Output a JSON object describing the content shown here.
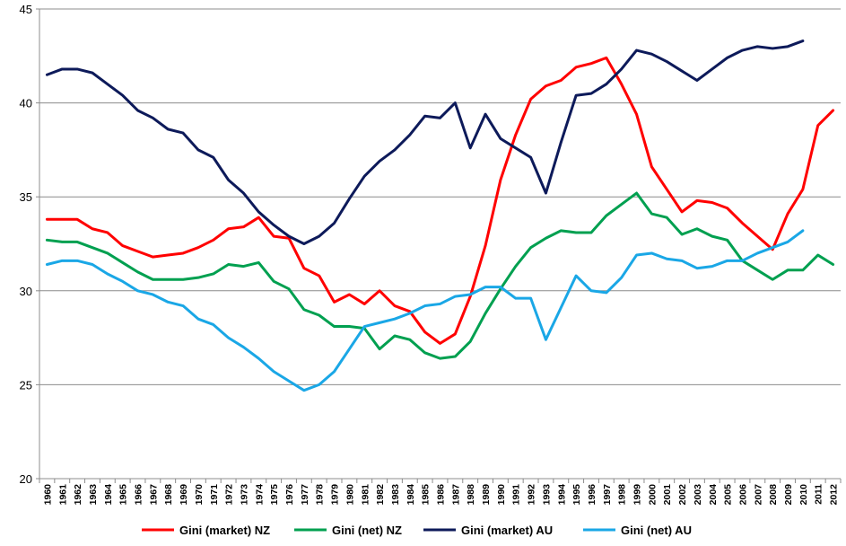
{
  "chart_data": {
    "type": "line",
    "title": "",
    "xlabel": "",
    "ylabel": "",
    "ylim": [
      20,
      45
    ],
    "yticks": [
      20,
      25,
      30,
      35,
      40,
      45
    ],
    "grid": "horizontal",
    "legend_position": "bottom",
    "x": [
      "1960",
      "1961",
      "1962",
      "1963",
      "1964",
      "1965",
      "1966",
      "1967",
      "1968",
      "1969",
      "1970",
      "1971",
      "1972",
      "1973",
      "1974",
      "1975",
      "1976",
      "1977",
      "1978",
      "1979",
      "1980",
      "1981",
      "1982",
      "1983",
      "1984",
      "1985",
      "1986",
      "1987",
      "1988",
      "1989",
      "1990",
      "1991",
      "1992",
      "1993",
      "1994",
      "1995",
      "1996",
      "1997",
      "1998",
      "1999",
      "2000",
      "2001",
      "2002",
      "2003",
      "2004",
      "2005",
      "2006",
      "2007",
      "2008",
      "2009",
      "2010",
      "2011",
      "2012"
    ],
    "series": [
      {
        "name": "Gini (market) NZ",
        "color": "#ff0000",
        "values": [
          33.8,
          33.8,
          33.8,
          33.3,
          33.1,
          32.4,
          32.1,
          31.8,
          31.9,
          32.0,
          32.3,
          32.7,
          33.3,
          33.4,
          33.9,
          32.9,
          32.8,
          31.2,
          30.8,
          29.4,
          29.8,
          29.3,
          30.0,
          29.2,
          28.9,
          27.8,
          27.2,
          27.7,
          29.7,
          32.4,
          35.9,
          38.3,
          40.2,
          40.9,
          41.2,
          41.9,
          42.1,
          42.4,
          41.0,
          39.4,
          36.6,
          35.4,
          34.2,
          34.8,
          34.7,
          34.4,
          33.6,
          32.9,
          32.2,
          34.1,
          35.4,
          38.8,
          39.6
        ]
      },
      {
        "name": "Gini (net) NZ",
        "color": "#00a050",
        "values": [
          32.7,
          32.6,
          32.6,
          32.3,
          32.0,
          31.5,
          31.0,
          30.6,
          30.6,
          30.6,
          30.7,
          30.9,
          31.4,
          31.3,
          31.5,
          30.5,
          30.1,
          29.0,
          28.7,
          28.1,
          28.1,
          28.0,
          26.9,
          27.6,
          27.4,
          26.7,
          26.4,
          26.5,
          27.3,
          28.8,
          30.1,
          31.3,
          32.3,
          32.8,
          33.2,
          33.1,
          33.1,
          34.0,
          34.6,
          35.2,
          34.1,
          33.9,
          33.0,
          33.3,
          32.9,
          32.7,
          31.6,
          31.1,
          30.6,
          31.1,
          31.1,
          31.9,
          31.4
        ]
      },
      {
        "name": "Gini (market) AU",
        "color": "#0d1a5a",
        "values": [
          41.5,
          41.8,
          41.8,
          41.6,
          41.0,
          40.4,
          39.6,
          39.2,
          38.6,
          38.4,
          37.5,
          37.1,
          35.9,
          35.2,
          34.2,
          33.5,
          32.9,
          32.5,
          32.9,
          33.6,
          34.9,
          36.1,
          36.9,
          37.5,
          38.3,
          39.3,
          39.2,
          40.0,
          37.6,
          39.4,
          38.1,
          37.6,
          37.1,
          35.2,
          37.9,
          40.4,
          40.5,
          41.0,
          41.8,
          42.8,
          42.6,
          42.2,
          41.7,
          41.2,
          41.8,
          42.4,
          42.8,
          43.0,
          42.9,
          43.0,
          43.3,
          null,
          null
        ]
      },
      {
        "name": "Gini (net) AU",
        "color": "#1aa7e6",
        "values": [
          31.4,
          31.6,
          31.6,
          31.4,
          30.9,
          30.5,
          30.0,
          29.8,
          29.4,
          29.2,
          28.5,
          28.2,
          27.5,
          27.0,
          26.4,
          25.7,
          25.2,
          24.7,
          25.0,
          25.7,
          26.9,
          28.1,
          28.3,
          28.5,
          28.8,
          29.2,
          29.3,
          29.7,
          29.8,
          30.2,
          30.2,
          29.6,
          29.6,
          27.4,
          29.1,
          30.8,
          30.0,
          29.9,
          30.7,
          31.9,
          32.0,
          31.7,
          31.6,
          31.2,
          31.3,
          31.6,
          31.6,
          32.0,
          32.3,
          32.6,
          33.2,
          null,
          null
        ]
      }
    ]
  }
}
